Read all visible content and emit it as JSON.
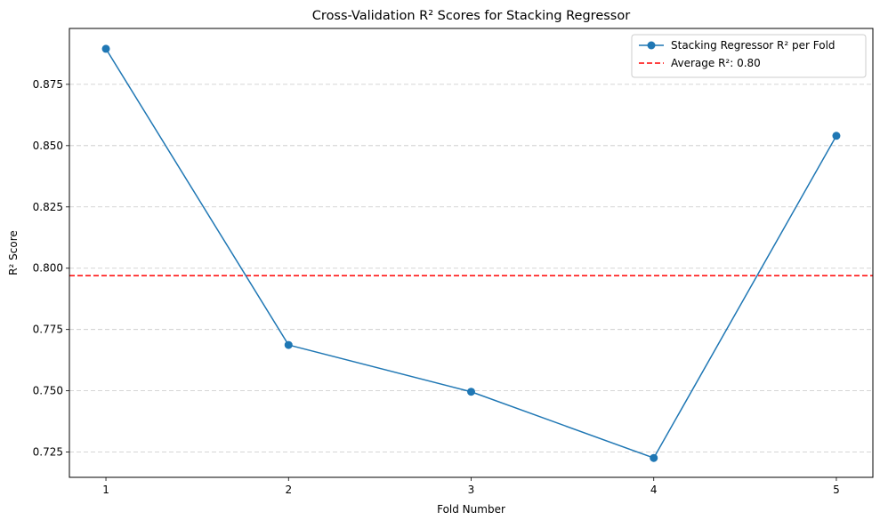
{
  "chart_data": {
    "type": "line",
    "title": "Cross-Validation R² Scores for Stacking Regressor",
    "xlabel": "Fold Number",
    "ylabel": "R² Score",
    "x": [
      1,
      2,
      3,
      4,
      5
    ],
    "xticks": [
      "1",
      "2",
      "3",
      "4",
      "5"
    ],
    "xlim": [
      0.8,
      5.2
    ],
    "ylim": [
      0.7147,
      0.8978
    ],
    "yticks": [
      "0.725",
      "0.750",
      "0.775",
      "0.800",
      "0.825",
      "0.850",
      "0.875"
    ],
    "grid": "y-dashed",
    "legend_position": "top-right",
    "series": [
      {
        "name": "Stacking Regressor R² per Fold",
        "values": [
          0.8895,
          0.7687,
          0.7496,
          0.7226,
          0.854
        ],
        "color": "#1f77b4",
        "marker": "circle",
        "line_style": "solid"
      }
    ],
    "reference_lines": [
      {
        "name": "Average R²: 0.80",
        "y": 0.797,
        "color": "#ff0000",
        "line_style": "dashed"
      }
    ]
  }
}
